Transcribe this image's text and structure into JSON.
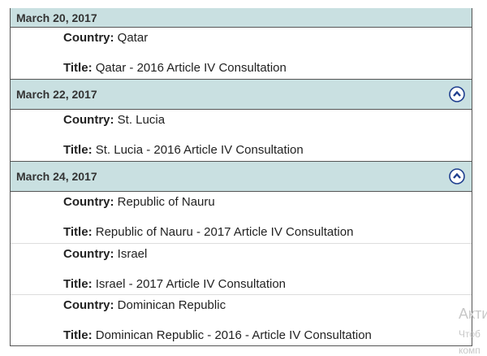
{
  "labels": {
    "country": "Country:",
    "title": "Title:"
  },
  "groups": [
    {
      "date": "March 20, 2017",
      "items": [
        {
          "country": "Qatar",
          "title": "Qatar - 2016 Article IV Consultation"
        }
      ]
    },
    {
      "date": "March 22, 2017",
      "items": [
        {
          "country": "St. Lucia",
          "title": "St. Lucia - 2016 Article IV Consultation"
        }
      ]
    },
    {
      "date": "March 24, 2017",
      "items": [
        {
          "country": "Republic of Nauru",
          "title": "Republic of Nauru - 2017 Article IV Consultation"
        },
        {
          "country": "Israel",
          "title": "Israel - 2017 Article IV Consultation"
        },
        {
          "country": "Dominican Republic",
          "title": "Dominican Republic - 2016 - Article IV Consultation"
        }
      ]
    }
  ],
  "watermark": [
    "Акти",
    "Чтоб",
    "комп"
  ]
}
